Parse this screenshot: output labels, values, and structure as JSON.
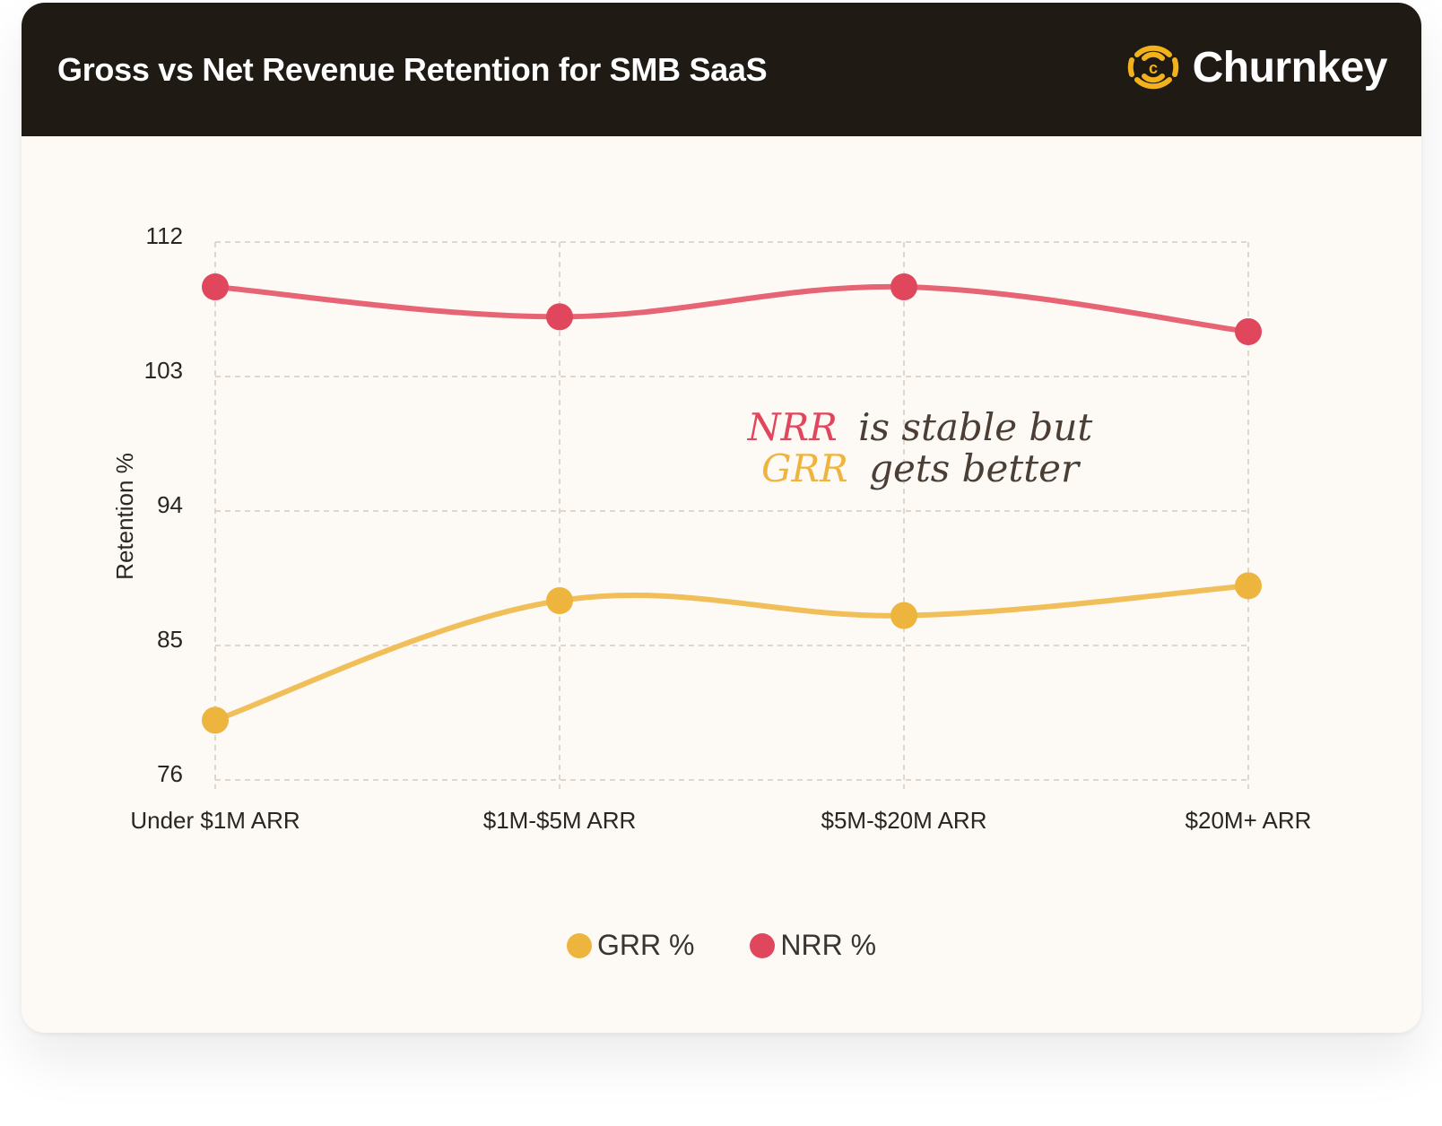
{
  "header": {
    "title": "Gross vs Net Revenue Retention for SMB SaaS",
    "logo_text": "Churnkey",
    "logo_color": "#f2b21b"
  },
  "chart_data": {
    "type": "line",
    "title": "Gross vs Net Revenue Retention for SMB SaaS",
    "xlabel": "",
    "ylabel": "Retention %",
    "categories": [
      "Under $1M ARR",
      "$1M-$5M ARR",
      "$5M-$20M ARR",
      "$20M+ ARR"
    ],
    "ylim": [
      76,
      112
    ],
    "yticks": [
      76,
      85,
      94,
      103,
      112
    ],
    "grid": true,
    "legend_position": "bottom",
    "series": [
      {
        "name": "GRR %",
        "color": "#edb53e",
        "values": [
          80,
          88,
          87,
          89
        ]
      },
      {
        "name": "NRR %",
        "color": "#e0475c",
        "values": [
          109,
          107,
          109,
          106
        ]
      }
    ],
    "annotation": {
      "line1": {
        "highlight": "NRR",
        "rest": "is stable but"
      },
      "line2": {
        "highlight": "GRR",
        "rest": "gets better"
      }
    }
  }
}
